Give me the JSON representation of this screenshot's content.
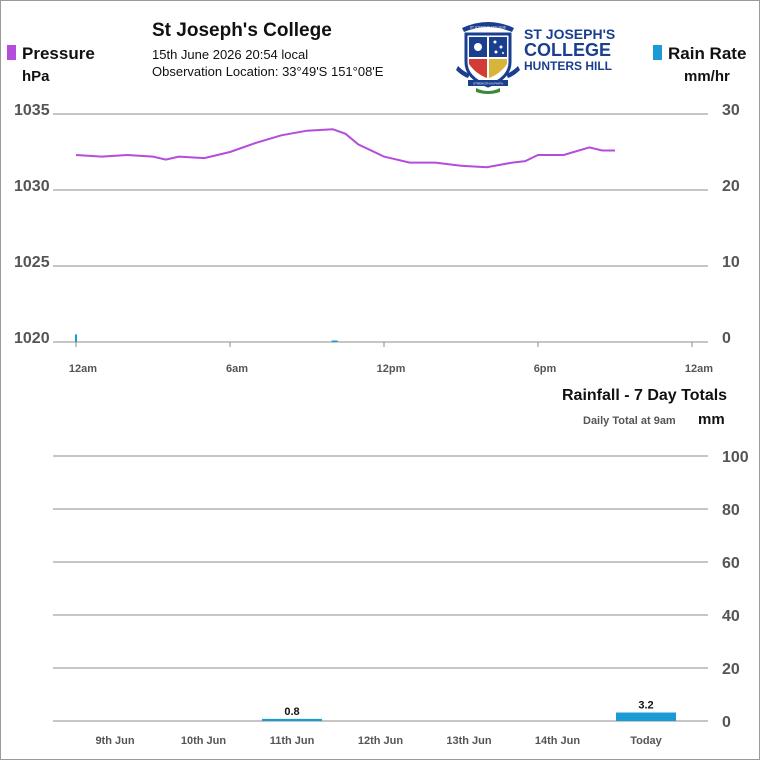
{
  "header": {
    "station_name": "St Joseph's College",
    "datetime": "15th June 2026  20:54 local",
    "observation_location": "Observation Location: 33°49'S 151°08'E"
  },
  "logo": {
    "line1": "ST JOSEPH'S",
    "line2": "COLLEGE",
    "line3": "HUNTERS HILL",
    "crest_ribbon": "ST JOSEPH'S COLLEGE",
    "crest_banner": "STRENGTH IN FAITH",
    "colors": {
      "navy": "#1a3f8f",
      "gold": "#d9b43a",
      "red": "#d33b36",
      "green": "#3a8a3a"
    }
  },
  "legend": {
    "pressure_label": "Pressure",
    "pressure_unit": "hPa",
    "pressure_color": "#b44cdc",
    "rain_rate_label": "Rain Rate",
    "rain_rate_unit": "mm/hr",
    "rain_color": "#1a9bd6"
  },
  "rainfall": {
    "title": "Rainfall - 7 Day Totals",
    "note": "Daily Total at 9am",
    "unit": "mm"
  },
  "chart_data": [
    {
      "type": "line",
      "x_tick_labels": [
        "12am",
        "6am",
        "12pm",
        "6pm",
        "12am"
      ],
      "xlim_hours": [
        0,
        24
      ],
      "series": [
        {
          "name": "Pressure",
          "axis": "left",
          "unit": "hPa",
          "x_hours": [
            0,
            1,
            2,
            3,
            3.5,
            4,
            5,
            6,
            7,
            8,
            9,
            10,
            10.5,
            11,
            12,
            13,
            14,
            15,
            16,
            17,
            17.5,
            18,
            19,
            20,
            20.5,
            21
          ],
          "values": [
            1032.3,
            1032.2,
            1032.3,
            1032.2,
            1032.0,
            1032.2,
            1032.1,
            1032.5,
            1033.1,
            1033.6,
            1033.9,
            1034.0,
            1033.7,
            1033.0,
            1032.2,
            1031.8,
            1031.8,
            1031.6,
            1031.5,
            1031.8,
            1031.9,
            1032.3,
            1032.3,
            1032.8,
            1032.6,
            1032.6
          ]
        },
        {
          "name": "Rain Rate",
          "axis": "right",
          "unit": "mm/hr",
          "type": "bar",
          "x_hours": [
            0,
            10
          ],
          "values": [
            1.0,
            0.2
          ]
        }
      ],
      "left_axis": {
        "ticks": [
          1020,
          1025,
          1030,
          1035
        ],
        "ylim": [
          1020,
          1035
        ]
      },
      "right_axis": {
        "ticks": [
          0,
          10,
          20,
          30
        ],
        "ylim": [
          0,
          30
        ]
      },
      "grid": true
    },
    {
      "type": "bar",
      "title": "Rainfall - 7 Day Totals",
      "categories": [
        "9th Jun",
        "10th Jun",
        "11th Jun",
        "12th Jun",
        "13th Jun",
        "14th Jun",
        "Today"
      ],
      "values": [
        0,
        0,
        0.8,
        0,
        0,
        0,
        3.2
      ],
      "data_labels": [
        "",
        "",
        "0.8",
        "",
        "",
        "",
        "3.2"
      ],
      "ylabel": "mm",
      "ylim": [
        0,
        100
      ],
      "y_ticks": [
        0,
        20,
        40,
        60,
        80,
        100
      ],
      "grid": true
    }
  ]
}
